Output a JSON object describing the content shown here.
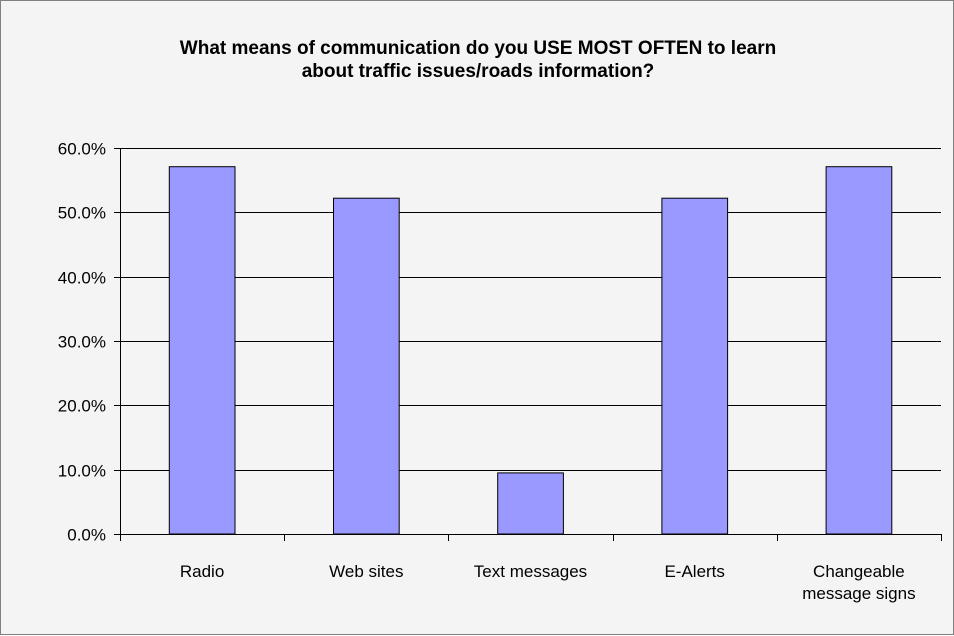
{
  "chart_data": {
    "type": "bar",
    "title": "What means of communication do you USE MOST OFTEN to learn\nabout traffic issues/roads information?",
    "xlabel": "",
    "ylabel": "",
    "categories": [
      "Radio",
      "Web sites",
      "Text messages",
      "E-Alerts",
      "Changeable message signs"
    ],
    "category_label_lines": [
      [
        "Radio"
      ],
      [
        "Web sites"
      ],
      [
        "Text messages"
      ],
      [
        "E-Alerts"
      ],
      [
        "Changeable",
        "message signs"
      ]
    ],
    "values": [
      0.571,
      0.522,
      0.095,
      0.522,
      0.571
    ],
    "ylim": [
      0,
      0.6
    ],
    "yticks": [
      0,
      0.1,
      0.2,
      0.3,
      0.4,
      0.5,
      0.6
    ],
    "ytick_labels": [
      "0.0%",
      "10.0%",
      "20.0%",
      "30.0%",
      "40.0%",
      "50.0%",
      "60.0%"
    ],
    "grid": true,
    "legend": "none",
    "colors": {
      "bar_fill": "#9999ff",
      "bar_stroke": "#000000",
      "gridline": "#000000",
      "background": "#f4f4f4"
    }
  }
}
